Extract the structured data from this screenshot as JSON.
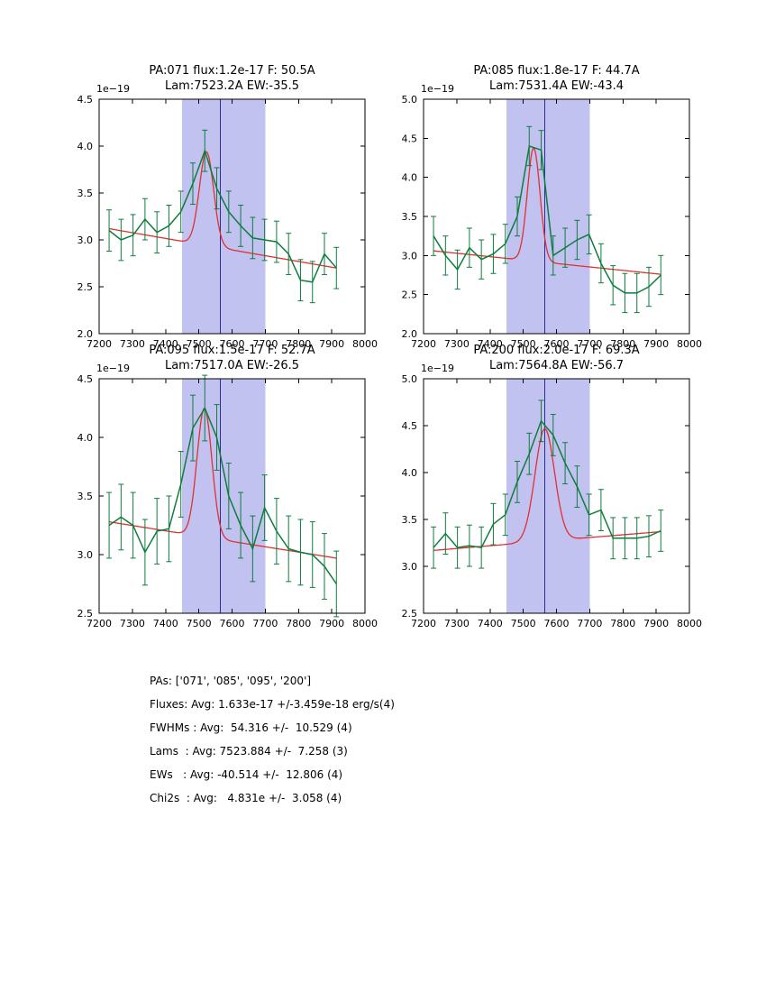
{
  "colors": {
    "band": "#c2c2f0",
    "vline": "#2c2ca0",
    "fit": "#e03030",
    "data": "#0e7d3c",
    "axis": "#000000"
  },
  "chart_data": [
    {
      "type": "line",
      "title1": "PA:071 flux:1.2e-17 F: 50.5A",
      "title2": "Lam:7523.2A EW:-35.5",
      "offset": "1e−19",
      "xlim": [
        7200,
        8000
      ],
      "ylim": [
        2.0,
        4.5
      ],
      "xticks": [
        7200,
        7300,
        7400,
        7500,
        7600,
        7700,
        7800,
        7900,
        8000
      ],
      "yticks": [
        2.0,
        2.5,
        3.0,
        3.5,
        4.0,
        4.5
      ],
      "band": [
        7450,
        7700
      ],
      "vline": 7565,
      "x": [
        7230,
        7266,
        7302,
        7338,
        7374,
        7410,
        7446,
        7482,
        7518,
        7554,
        7590,
        7626,
        7662,
        7698,
        7734,
        7770,
        7806,
        7842,
        7878,
        7914
      ],
      "y": [
        3.1,
        3.0,
        3.05,
        3.22,
        3.08,
        3.15,
        3.3,
        3.6,
        3.95,
        3.55,
        3.3,
        3.15,
        3.02,
        3.0,
        2.98,
        2.85,
        2.57,
        2.55,
        2.85,
        2.7
      ],
      "yerr": 0.22,
      "fit": {
        "cont_left": 3.12,
        "cont_right": 2.7,
        "center": 7523.2,
        "sigma": 21.4,
        "amp": 1.0
      }
    },
    {
      "type": "line",
      "title1": "PA:085 flux:1.8e-17 F: 44.7A",
      "title2": "Lam:7531.4A EW:-43.4",
      "offset": "1e−19",
      "xlim": [
        7200,
        8000
      ],
      "ylim": [
        2.0,
        5.0
      ],
      "xticks": [
        7200,
        7300,
        7400,
        7500,
        7600,
        7700,
        7800,
        7900,
        8000
      ],
      "yticks": [
        2.0,
        2.5,
        3.0,
        3.5,
        4.0,
        4.5,
        5.0
      ],
      "band": [
        7450,
        7700
      ],
      "vline": 7565,
      "x": [
        7230,
        7266,
        7302,
        7338,
        7374,
        7410,
        7446,
        7482,
        7518,
        7554,
        7590,
        7626,
        7662,
        7698,
        7734,
        7770,
        7806,
        7842,
        7878,
        7914
      ],
      "y": [
        3.25,
        3.0,
        2.82,
        3.1,
        2.95,
        3.02,
        3.15,
        3.5,
        4.4,
        4.35,
        3.0,
        3.1,
        3.2,
        3.27,
        2.9,
        2.62,
        2.52,
        2.52,
        2.6,
        2.75
      ],
      "yerr": 0.25,
      "fit": {
        "cont_left": 3.06,
        "cont_right": 2.76,
        "center": 7531.4,
        "sigma": 19.0,
        "amp": 1.45
      }
    },
    {
      "type": "line",
      "title1": "PA:095 flux:1.5e-17 F: 52.7A",
      "title2": "Lam:7517.0A EW:-26.5",
      "offset": "1e−19",
      "xlim": [
        7200,
        8000
      ],
      "ylim": [
        2.5,
        4.5
      ],
      "xticks": [
        7200,
        7300,
        7400,
        7500,
        7600,
        7700,
        7800,
        7900,
        8000
      ],
      "yticks": [
        2.5,
        3.0,
        3.5,
        4.0,
        4.5
      ],
      "band": [
        7450,
        7700
      ],
      "vline": 7565,
      "x": [
        7230,
        7266,
        7302,
        7338,
        7374,
        7410,
        7446,
        7482,
        7518,
        7554,
        7590,
        7626,
        7662,
        7698,
        7734,
        7770,
        7806,
        7842,
        7878,
        7914
      ],
      "y": [
        3.25,
        3.32,
        3.25,
        3.02,
        3.2,
        3.22,
        3.6,
        4.08,
        4.25,
        4.0,
        3.5,
        3.25,
        3.05,
        3.4,
        3.2,
        3.05,
        3.02,
        3.0,
        2.9,
        2.75
      ],
      "yerr": 0.28,
      "fit": {
        "cont_left": 3.28,
        "cont_right": 2.97,
        "center": 7517.0,
        "sigma": 22.4,
        "amp": 1.1
      }
    },
    {
      "type": "line",
      "title1": "PA:200 flux:2.0e-17 F: 69.3A",
      "title2": "Lam:7564.8A EW:-56.7",
      "offset": "1e−19",
      "xlim": [
        7200,
        8000
      ],
      "ylim": [
        2.5,
        5.0
      ],
      "xticks": [
        7200,
        7300,
        7400,
        7500,
        7600,
        7700,
        7800,
        7900,
        8000
      ],
      "yticks": [
        2.5,
        3.0,
        3.5,
        4.0,
        4.5,
        5.0
      ],
      "band": [
        7450,
        7700
      ],
      "vline": 7565,
      "x": [
        7230,
        7266,
        7302,
        7338,
        7374,
        7410,
        7446,
        7482,
        7518,
        7554,
        7590,
        7626,
        7662,
        7698,
        7734,
        7770,
        7806,
        7842,
        7878,
        7914
      ],
      "y": [
        3.2,
        3.35,
        3.2,
        3.22,
        3.2,
        3.45,
        3.55,
        3.9,
        4.2,
        4.55,
        4.4,
        4.1,
        3.85,
        3.55,
        3.6,
        3.3,
        3.3,
        3.3,
        3.32,
        3.38
      ],
      "yerr": 0.22,
      "fit": {
        "cont_left": 3.17,
        "cont_right": 3.37,
        "center": 7564.8,
        "sigma": 29.4,
        "amp": 1.2
      }
    }
  ],
  "summary": {
    "lines": [
      "PAs: ['071', '085', '095', '200']",
      "Fluxes: Avg: 1.633e-17 +/-3.459e-18 erg/s(4)",
      "FWHMs : Avg:  54.316 +/-  10.529 (4)",
      "Lams  : Avg: 7523.884 +/-  7.258 (3)",
      "EWs   : Avg: -40.514 +/-  12.806 (4)",
      "Chi2s  : Avg:   4.831e +/-  3.058 (4)"
    ]
  }
}
